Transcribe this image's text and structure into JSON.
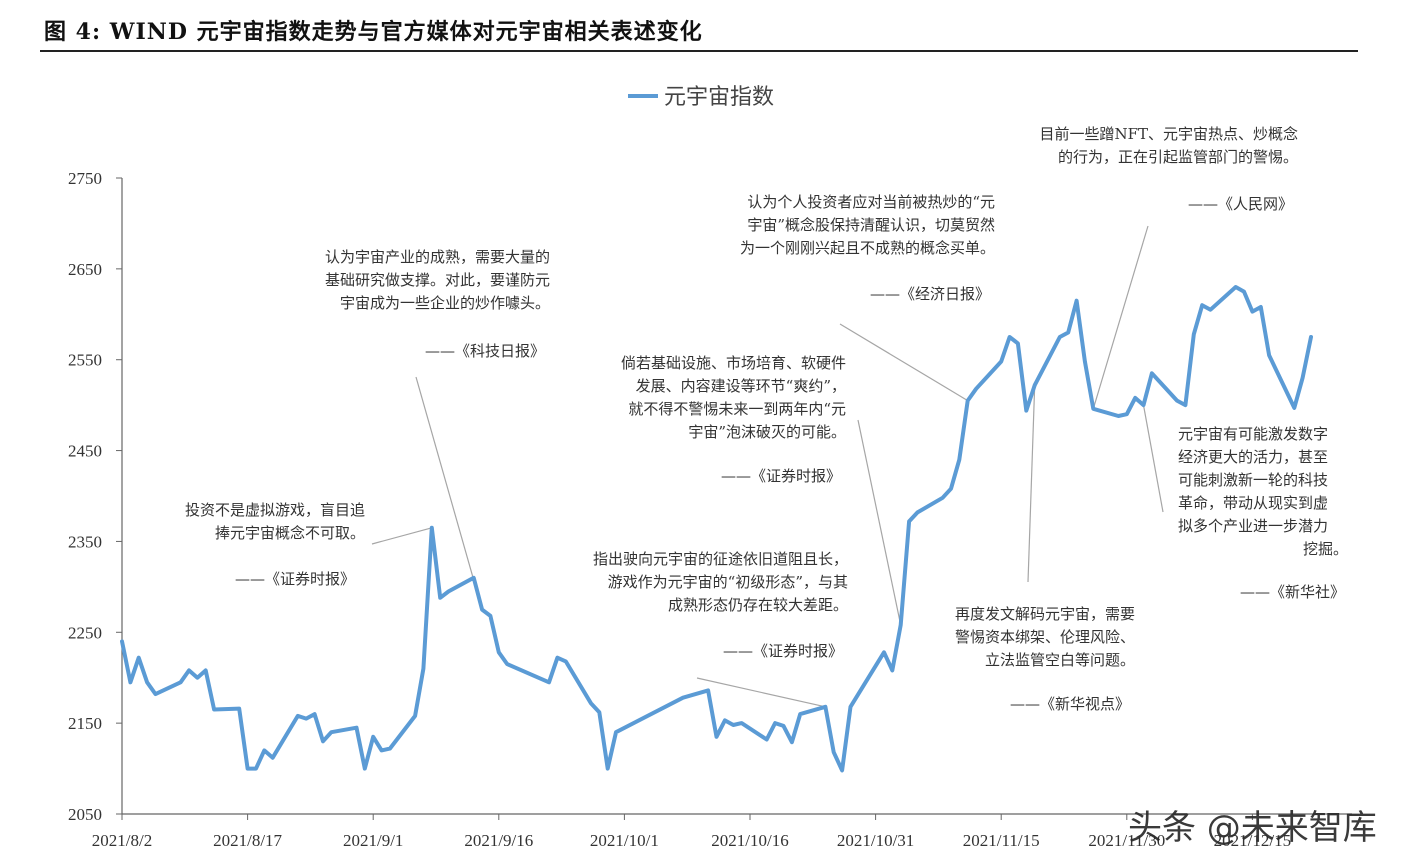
{
  "figure_title": "图 4: WIND 元宇宙指数走势与官方媒体对元宇宙相关表述变化",
  "watermark": "头条 @未来智库",
  "chart_data": {
    "type": "line",
    "title": "",
    "xlabel": "",
    "ylabel": "",
    "legend": "top-center",
    "grid": false,
    "ylim": [
      2050,
      2750
    ],
    "yticks": [
      2050,
      2150,
      2250,
      2350,
      2450,
      2550,
      2650,
      2750
    ],
    "xticks": [
      "2021/8/2",
      "2021/8/17",
      "2021/9/1",
      "2021/9/16",
      "2021/10/1",
      "2021/10/16",
      "2021/10/31",
      "2021/11/15",
      "2021/11/30",
      "2021/12/15"
    ],
    "series": [
      {
        "name": "元宇宙指数",
        "color": "#5B9BD5",
        "points": [
          [
            "2021/8/2",
            2240
          ],
          [
            "2021/8/3",
            2195
          ],
          [
            "2021/8/4",
            2222
          ],
          [
            "2021/8/5",
            2195
          ],
          [
            "2021/8/6",
            2182
          ],
          [
            "2021/8/9",
            2195
          ],
          [
            "2021/8/10",
            2208
          ],
          [
            "2021/8/11",
            2200
          ],
          [
            "2021/8/12",
            2208
          ],
          [
            "2021/8/13",
            2165
          ],
          [
            "2021/8/16",
            2166
          ],
          [
            "2021/8/17",
            2100
          ],
          [
            "2021/8/18",
            2100
          ],
          [
            "2021/8/19",
            2120
          ],
          [
            "2021/8/20",
            2112
          ],
          [
            "2021/8/23",
            2158
          ],
          [
            "2021/8/24",
            2155
          ],
          [
            "2021/8/25",
            2160
          ],
          [
            "2021/8/26",
            2130
          ],
          [
            "2021/8/27",
            2140
          ],
          [
            "2021/8/30",
            2145
          ],
          [
            "2021/8/31",
            2100
          ],
          [
            "2021/9/1",
            2135
          ],
          [
            "2021/9/2",
            2120
          ],
          [
            "2021/9/3",
            2122
          ],
          [
            "2021/9/6",
            2158
          ],
          [
            "2021/9/7",
            2210
          ],
          [
            "2021/9/8",
            2365
          ],
          [
            "2021/9/9",
            2288
          ],
          [
            "2021/9/10",
            2295
          ],
          [
            "2021/9/13",
            2310
          ],
          [
            "2021/9/14",
            2275
          ],
          [
            "2021/9/15",
            2268
          ],
          [
            "2021/9/16",
            2228
          ],
          [
            "2021/9/17",
            2215
          ],
          [
            "2021/9/22",
            2195
          ],
          [
            "2021/9/23",
            2222
          ],
          [
            "2021/9/24",
            2218
          ],
          [
            "2021/9/27",
            2172
          ],
          [
            "2021/9/28",
            2162
          ],
          [
            "2021/9/29",
            2100
          ],
          [
            "2021/9/30",
            2140
          ],
          [
            "2021/10/8",
            2178
          ],
          [
            "2021/10/11",
            2186
          ],
          [
            "2021/10/12",
            2135
          ],
          [
            "2021/10/13",
            2153
          ],
          [
            "2021/10/14",
            2148
          ],
          [
            "2021/10/15",
            2150
          ],
          [
            "2021/10/18",
            2132
          ],
          [
            "2021/10/19",
            2150
          ],
          [
            "2021/10/20",
            2147
          ],
          [
            "2021/10/21",
            2129
          ],
          [
            "2021/10/22",
            2160
          ],
          [
            "2021/10/25",
            2168
          ],
          [
            "2021/10/26",
            2118
          ],
          [
            "2021/10/27",
            2098
          ],
          [
            "2021/10/28",
            2168
          ],
          [
            "2021/11/1",
            2228
          ],
          [
            "2021/11/2",
            2208
          ],
          [
            "2021/11/3",
            2258
          ],
          [
            "2021/11/4",
            2372
          ],
          [
            "2021/11/5",
            2382
          ],
          [
            "2021/11/8",
            2398
          ],
          [
            "2021/11/9",
            2408
          ],
          [
            "2021/11/10",
            2440
          ],
          [
            "2021/11/11",
            2505
          ],
          [
            "2021/11/12",
            2518
          ],
          [
            "2021/11/15",
            2548
          ],
          [
            "2021/11/16",
            2575
          ],
          [
            "2021/11/17",
            2568
          ],
          [
            "2021/11/18",
            2494
          ],
          [
            "2021/11/19",
            2522
          ],
          [
            "2021/11/22",
            2575
          ],
          [
            "2021/11/23",
            2580
          ],
          [
            "2021/11/24",
            2615
          ],
          [
            "2021/11/25",
            2548
          ],
          [
            "2021/11/26",
            2496
          ],
          [
            "2021/11/29",
            2488
          ],
          [
            "2021/11/30",
            2490
          ],
          [
            "2021/12/1",
            2508
          ],
          [
            "2021/12/2",
            2500
          ],
          [
            "2021/12/3",
            2535
          ],
          [
            "2021/12/6",
            2505
          ],
          [
            "2021/12/7",
            2500
          ],
          [
            "2021/12/8",
            2578
          ],
          [
            "2021/12/9",
            2610
          ],
          [
            "2021/12/10",
            2605
          ],
          [
            "2021/12/13",
            2630
          ],
          [
            "2021/12/14",
            2625
          ],
          [
            "2021/12/15",
            2603
          ],
          [
            "2021/12/16",
            2608
          ],
          [
            "2021/12/17",
            2555
          ],
          [
            "2021/12/20",
            2497
          ],
          [
            "2021/12/21",
            2530
          ],
          [
            "2021/12/22",
            2575
          ]
        ]
      }
    ],
    "annotations": [
      {
        "id": "a1",
        "lines": [
          "投资不是虚拟游戏，盲目追",
          "捧元宇宙概念不可取。"
        ],
        "source": "——《证券时报》",
        "target": "2021/9/8",
        "anchor": "end"
      },
      {
        "id": "a2",
        "lines": [
          "认为宇宙产业的成熟，需要大量的",
          "基础研究做支撑。对此，要谨防元",
          "宇宙成为一些企业的炒作噱头。"
        ],
        "source": "——《科技日报》",
        "target": "2021/9/14",
        "anchor": "end"
      },
      {
        "id": "a3",
        "lines": [
          "倘若基础设施、市场培育、软硬件",
          "发展、内容建设等环节“爽约”，",
          "就不得不警惕未来一到两年内“元",
          "宇宙”泡沫破灭的可能。"
        ],
        "source": "——《证券时报》",
        "target": "2021/11/3",
        "anchor": "end"
      },
      {
        "id": "a4",
        "lines": [
          "指出驶向元宇宙的征途依旧道阻且长，",
          "游戏作为元宇宙的“初级形态”，与其",
          "成熟形态仍存在较大差距。"
        ],
        "source": "——《证券时报》",
        "target": "2021/10/25",
        "anchor": "end"
      },
      {
        "id": "a5",
        "lines": [
          "认为个人投资者应对当前被热炒的“元",
          "宇宙”概念股保持清醒认识，切莫贸然",
          "为一个刚刚兴起且不成熟的概念买单。"
        ],
        "source": "——《经济日报》",
        "target": "2021/11/11",
        "anchor": "end"
      },
      {
        "id": "a6",
        "lines": [
          "目前一些蹭NFT、元宇宙热点、炒概念",
          "的行为，正在引起监管部门的警惕。"
        ],
        "source": "——《人民网》",
        "target": "2021/11/26",
        "anchor": "end"
      },
      {
        "id": "a7",
        "lines": [
          "再度发文解码元宇宙，需要",
          "警惕资本绑架、伦理风险、",
          "立法监管空白等问题。"
        ],
        "source": "——《新华视点》",
        "target": "2021/11/19",
        "anchor": "end"
      },
      {
        "id": "a8",
        "lines": [
          "元宇宙有可能激发数字",
          "经济更大的活力，甚至",
          "可能刺激新一轮的科技",
          "革命，带动从现实到虚",
          "拟多个产业进一步潜力",
          "挖掘。"
        ],
        "source": "——《新华社》",
        "target": "2021/12/2",
        "anchor": "start"
      }
    ]
  }
}
